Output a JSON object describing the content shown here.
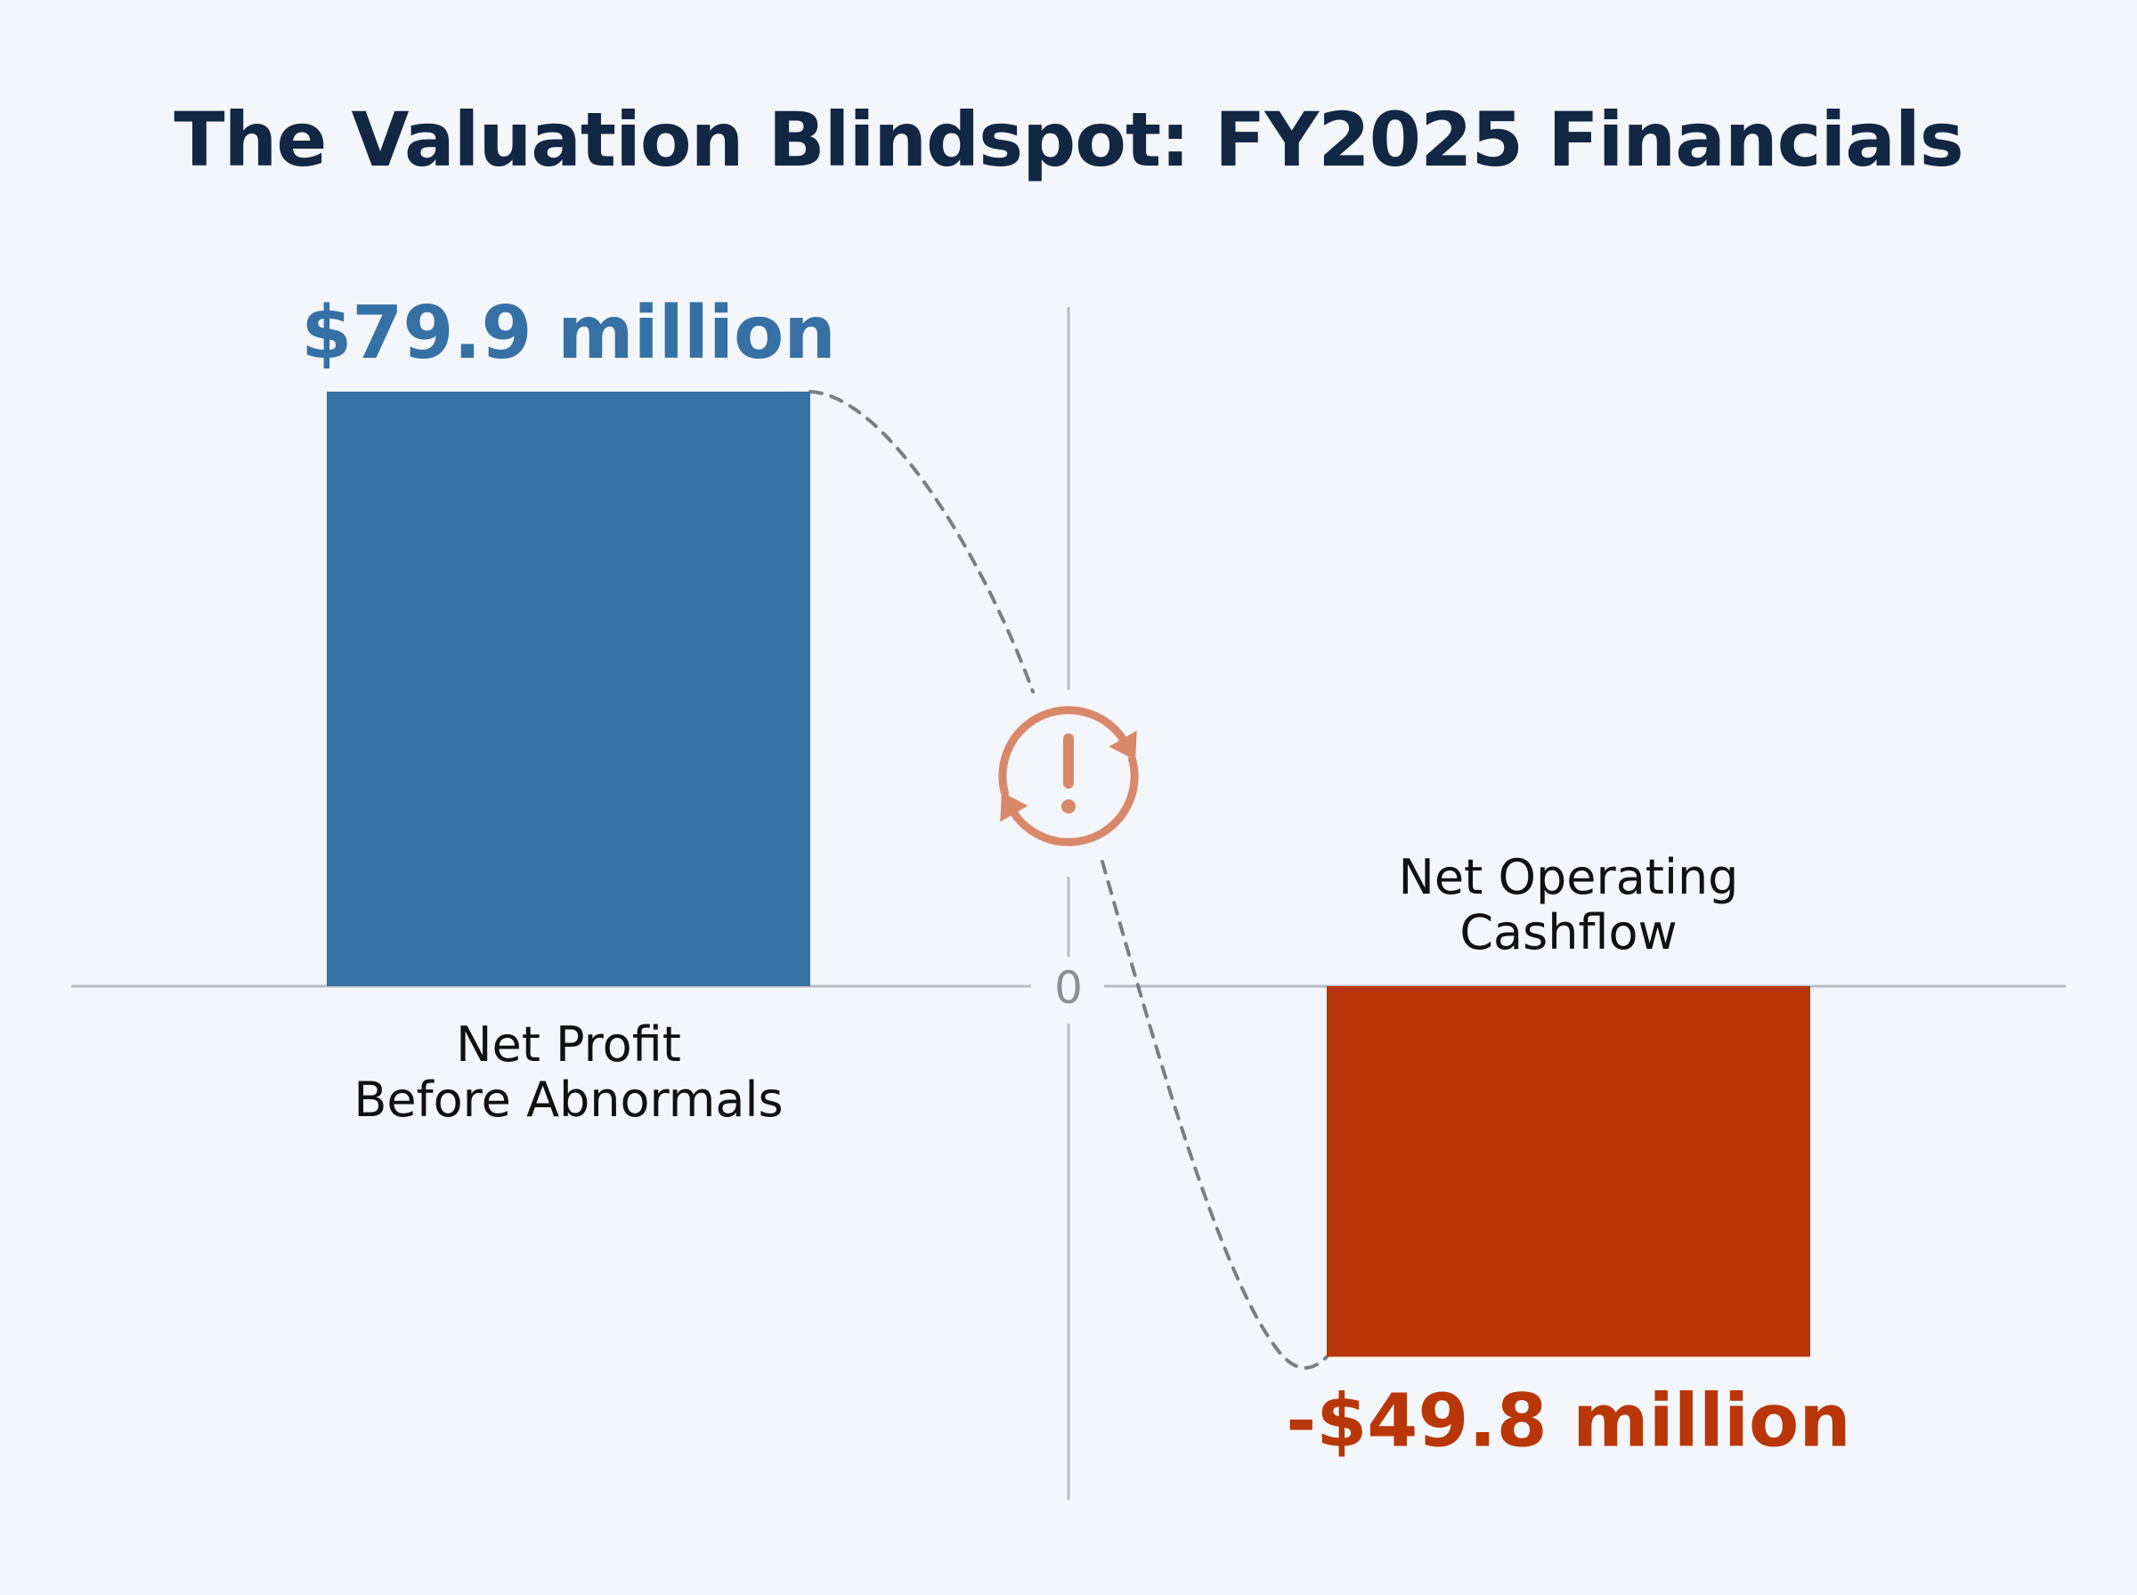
{
  "chart_data": {
    "type": "bar",
    "title": "The Valuation Blindspot: FY2025 Financials",
    "categories": [
      "Net Profit\nBefore Abnormals",
      "Net Operating\nCashflow"
    ],
    "values": [
      79.9,
      -49.8
    ],
    "data_labels": [
      "$79.9 million",
      "-$49.8 million"
    ],
    "unit": "million",
    "zero_label": "0",
    "colors": [
      "#3671a5",
      "#b93608"
    ],
    "ylim": [
      -49.8,
      79.9
    ],
    "grid": false,
    "legend": "none"
  },
  "icon": {
    "name": "warning-refresh-icon",
    "color": "#d9886a"
  },
  "colors": {
    "background": "#f3f6fa",
    "title": "#122744",
    "axis": "#b8bdc4",
    "connector": "#7a7e85"
  }
}
